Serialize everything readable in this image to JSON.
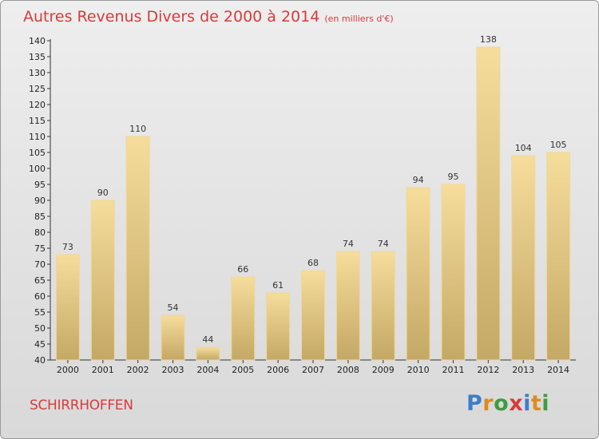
{
  "header": {
    "title": "Autres Revenus Divers de 2000 à 2014",
    "subtitle": "(en milliers d'€)"
  },
  "footer": {
    "commune": "SCHIRRHOFFEN",
    "logo": "Proxiti"
  },
  "colors": {
    "bar_light": "#f6dd9c",
    "bar_dark": "#c4a865",
    "text_accent": "#d63c3c"
  },
  "chart_data": {
    "type": "bar",
    "categories": [
      "2000",
      "2001",
      "2002",
      "2003",
      "2004",
      "2005",
      "2006",
      "2007",
      "2008",
      "2009",
      "2010",
      "2011",
      "2012",
      "2013",
      "2014"
    ],
    "values": [
      73,
      90,
      110,
      54,
      44,
      66,
      61,
      68,
      74,
      74,
      94,
      95,
      138,
      104,
      105
    ],
    "title": "Autres Revenus Divers de 2000 à 2014",
    "subtitle": "(en milliers d'€)",
    "xlabel": "",
    "ylabel": "",
    "ylim": [
      40,
      140
    ],
    "yticks": [
      40,
      45,
      50,
      55,
      60,
      65,
      70,
      75,
      80,
      85,
      90,
      95,
      100,
      105,
      110,
      115,
      120,
      125,
      130,
      135,
      140
    ],
    "grid": false,
    "legend": "none"
  }
}
